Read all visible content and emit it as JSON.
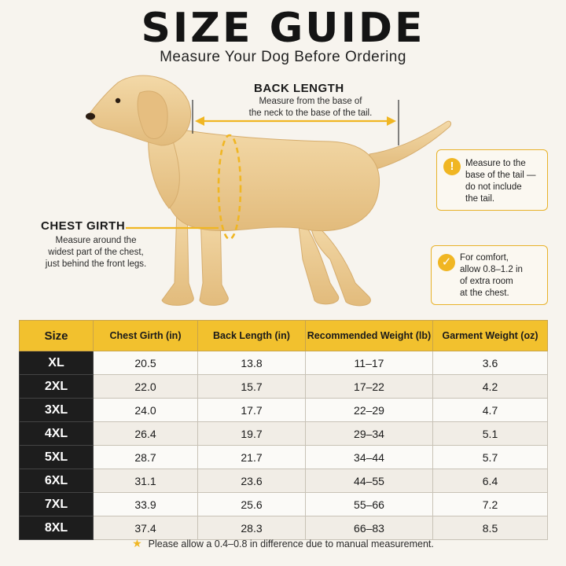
{
  "header": {
    "title": "SIZE GUIDE",
    "subtitle": "Measure Your Dog Before Ordering"
  },
  "back_length": {
    "title": "BACK LENGTH",
    "text": "Measure from the base of\nthe neck to the base of the tail."
  },
  "chest_girth": {
    "title": "CHEST GIRTH",
    "text": "Measure around the\nwidest part of the chest,\njust behind the front legs."
  },
  "notes": [
    {
      "icon": "exclamation-icon",
      "glyph": "!",
      "text": "Measure to the\nbase of the tail —\ndo not include\nthe tail."
    },
    {
      "icon": "check-icon",
      "glyph": "✓",
      "text": "For comfort,\nallow 0.8–1.2 in\nof extra room\nat the chest."
    }
  ],
  "colors": {
    "accent": "#f2c12e",
    "dark": "#1d1d1d",
    "background": "#f7f4ee"
  },
  "table": {
    "headers": [
      "Size",
      "Chest Girth (in)",
      "Back Length (in)",
      "Recommended Weight (lb)",
      "Garment Weight (oz)"
    ],
    "rows": [
      [
        "XL",
        "20.5",
        "13.8",
        "11–17",
        "3.6"
      ],
      [
        "2XL",
        "22.0",
        "15.7",
        "17–22",
        "4.2"
      ],
      [
        "3XL",
        "24.0",
        "17.7",
        "22–29",
        "4.7"
      ],
      [
        "4XL",
        "26.4",
        "19.7",
        "29–34",
        "5.1"
      ],
      [
        "5XL",
        "28.7",
        "21.7",
        "34–44",
        "5.7"
      ],
      [
        "6XL",
        "31.1",
        "23.6",
        "44–55",
        "6.4"
      ],
      [
        "7XL",
        "33.9",
        "25.6",
        "55–66",
        "7.2"
      ],
      [
        "8XL",
        "37.4",
        "28.3",
        "66–83",
        "8.5"
      ]
    ]
  },
  "footnote": "Please allow a 0.4–0.8 in difference due to manual measurement."
}
